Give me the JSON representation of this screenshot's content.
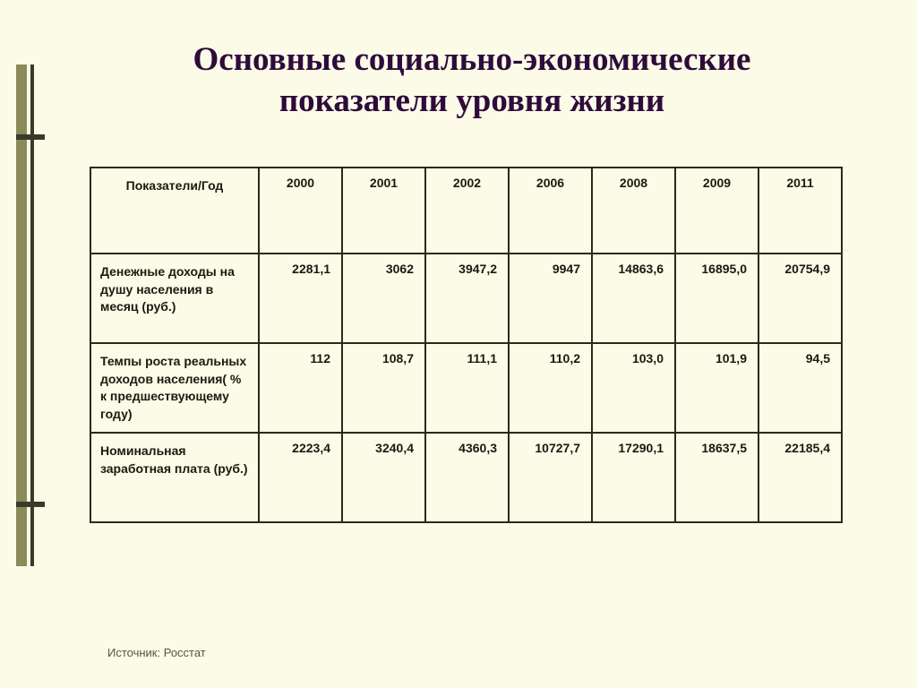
{
  "title_line1": "Основные социально-экономические",
  "title_line2": "показатели уровня жизни",
  "table": {
    "header_label": "Показатели/Год",
    "years": [
      "2000",
      "2001",
      "2002",
      "2006",
      "2008",
      "2009",
      "2011"
    ],
    "rows": [
      {
        "label": "Денежные доходы на душу населения в месяц (руб.)",
        "cells": [
          "2281,1",
          "3062",
          "3947,2",
          "9947",
          "14863,6",
          "16895,0",
          "20754,9"
        ]
      },
      {
        "label": "Темпы роста реальных доходов населения( % к предшествующему году)",
        "cells": [
          "112",
          "108,7",
          "111,1",
          "110,2",
          "103,0",
          "101,9",
          "94,5"
        ]
      },
      {
        "label": "Номинальная заработная плата (руб.)",
        "cells": [
          "2223,4",
          "3240,4",
          "4360,3",
          "10727,7",
          "17290,1",
          "18637,5",
          "22185,4"
        ]
      }
    ]
  },
  "source": "Источник: Росстат",
  "colors": {
    "background": "#fbfbe8",
    "title_color": "#2e0b3a",
    "border_color": "#2a2a1a",
    "accent_bar": "#8a8a5a",
    "accent_dark": "#3a3a2a"
  },
  "fonts": {
    "title_family": "Times New Roman",
    "title_size_pt": 28,
    "cell_size_pt": 11
  }
}
